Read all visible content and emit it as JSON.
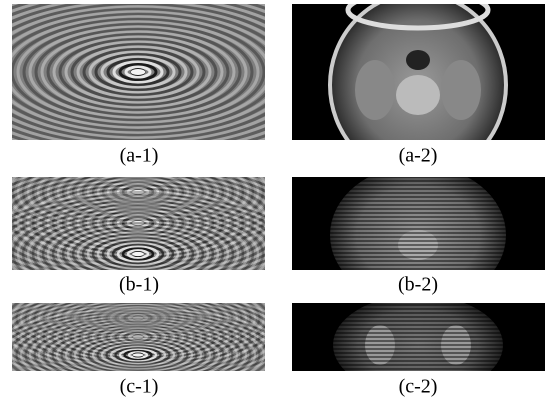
{
  "captions": [
    [
      "(a-1)",
      "(a-2)"
    ],
    [
      "(b-1)",
      "(b-2)"
    ],
    [
      "(c-1)",
      "(c-2)"
    ]
  ]
}
